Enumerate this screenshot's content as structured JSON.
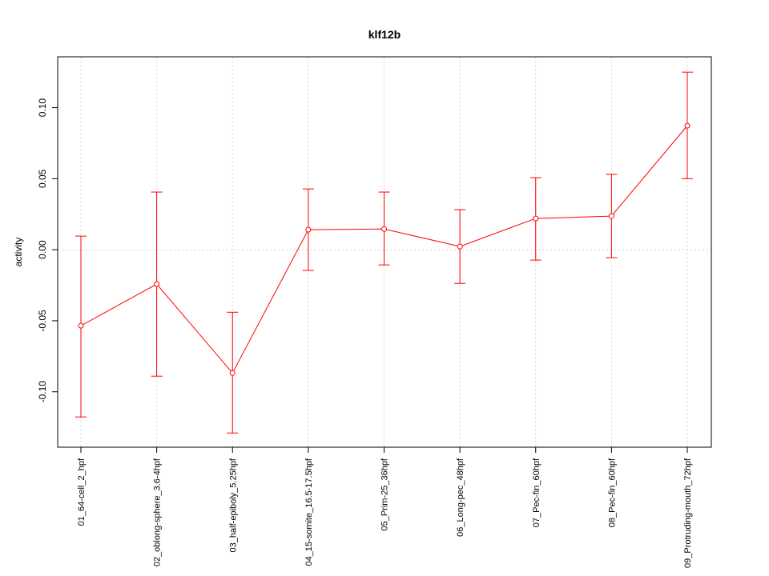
{
  "chart_data": {
    "type": "line",
    "title": "klf12b",
    "xlabel": "",
    "ylabel": "activity",
    "categories": [
      "01_64-cell_2_hpf",
      "02_oblong-sphere_3.6-4hpf",
      "03_half-epiboly_5.25hpf",
      "04_15-somite_16.5-17.5hpf",
      "05_Prim-25_36hpf",
      "06_Long-pec_48hpf",
      "07_Pec-fin_60hpf",
      "08_Pec-fin_60hpf",
      "09_Protruding-mouth_72hpf"
    ],
    "values": [
      -0.0535,
      -0.0242,
      -0.0868,
      0.0141,
      0.0146,
      0.0023,
      0.022,
      0.0237,
      0.0873
    ],
    "upper": [
      0.0096,
      0.0406,
      -0.044,
      0.0428,
      0.0406,
      0.0282,
      0.0507,
      0.053,
      0.125
    ],
    "lower": [
      -0.1177,
      -0.089,
      -0.129,
      -0.0146,
      -0.0107,
      -0.0237,
      -0.0073,
      -0.0056,
      0.05
    ],
    "yticks": [
      -0.1,
      -0.05,
      0.0,
      0.05,
      0.1
    ],
    "ytick_labels": [
      "-0.10",
      "-0.05",
      "0.00",
      "0.05",
      "0.10"
    ],
    "ylim": [
      -0.139,
      0.1358
    ],
    "grid": "dotted vertical at categories, horizontal at 0",
    "color": "#ff0000"
  }
}
